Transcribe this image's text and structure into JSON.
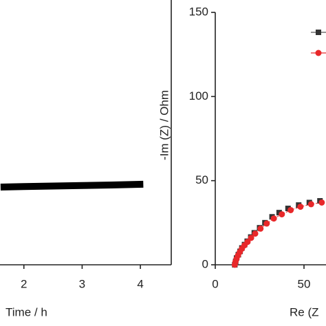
{
  "chart_data": [
    {
      "type": "line",
      "xlabel": "Time / h",
      "x": [
        1.6,
        2.0,
        2.5,
        3.0,
        3.5,
        4.05
      ],
      "series": [
        {
          "color": "#000000",
          "values": [
            30.8,
            31.0,
            31.2,
            31.4,
            31.6,
            31.9
          ]
        }
      ],
      "xlim": [
        1.59,
        4.53
      ],
      "xticks": [
        2,
        3,
        4
      ],
      "ylim": [
        0,
        100
      ]
    },
    {
      "type": "scatter",
      "xlabel": "Re (Z",
      "ylabel": "-Im (Z) / Ohm",
      "xlim": [
        0,
        62.4
      ],
      "xticks": [
        0,
        50
      ],
      "ylim": [
        0,
        150
      ],
      "yticks": [
        0,
        50,
        100,
        150
      ],
      "series": [
        {
          "color": "#333333",
          "marker": "square",
          "x": [
            11,
            11.5,
            12,
            13,
            14,
            15,
            16.5,
            18,
            20,
            22,
            25,
            28,
            32,
            36,
            41,
            47,
            53,
            59
          ],
          "values": [
            0,
            2,
            4,
            6,
            8,
            10,
            12,
            14,
            16.5,
            19,
            22,
            25,
            28.5,
            31,
            33.5,
            35.5,
            37,
            38
          ]
        },
        {
          "color": "#e8282a",
          "marker": "circle",
          "x": [
            11,
            11.4,
            12,
            12.8,
            13.8,
            15,
            16.5,
            18.2,
            20.2,
            22.5,
            25.5,
            29,
            33,
            37.5,
            42.5,
            48,
            54,
            60
          ],
          "values": [
            0,
            1.8,
            3.6,
            5.6,
            7.6,
            9.6,
            11.6,
            13.6,
            16,
            18.5,
            21.5,
            24.5,
            27.5,
            30,
            32.5,
            34.5,
            36,
            37
          ]
        }
      ]
    }
  ]
}
